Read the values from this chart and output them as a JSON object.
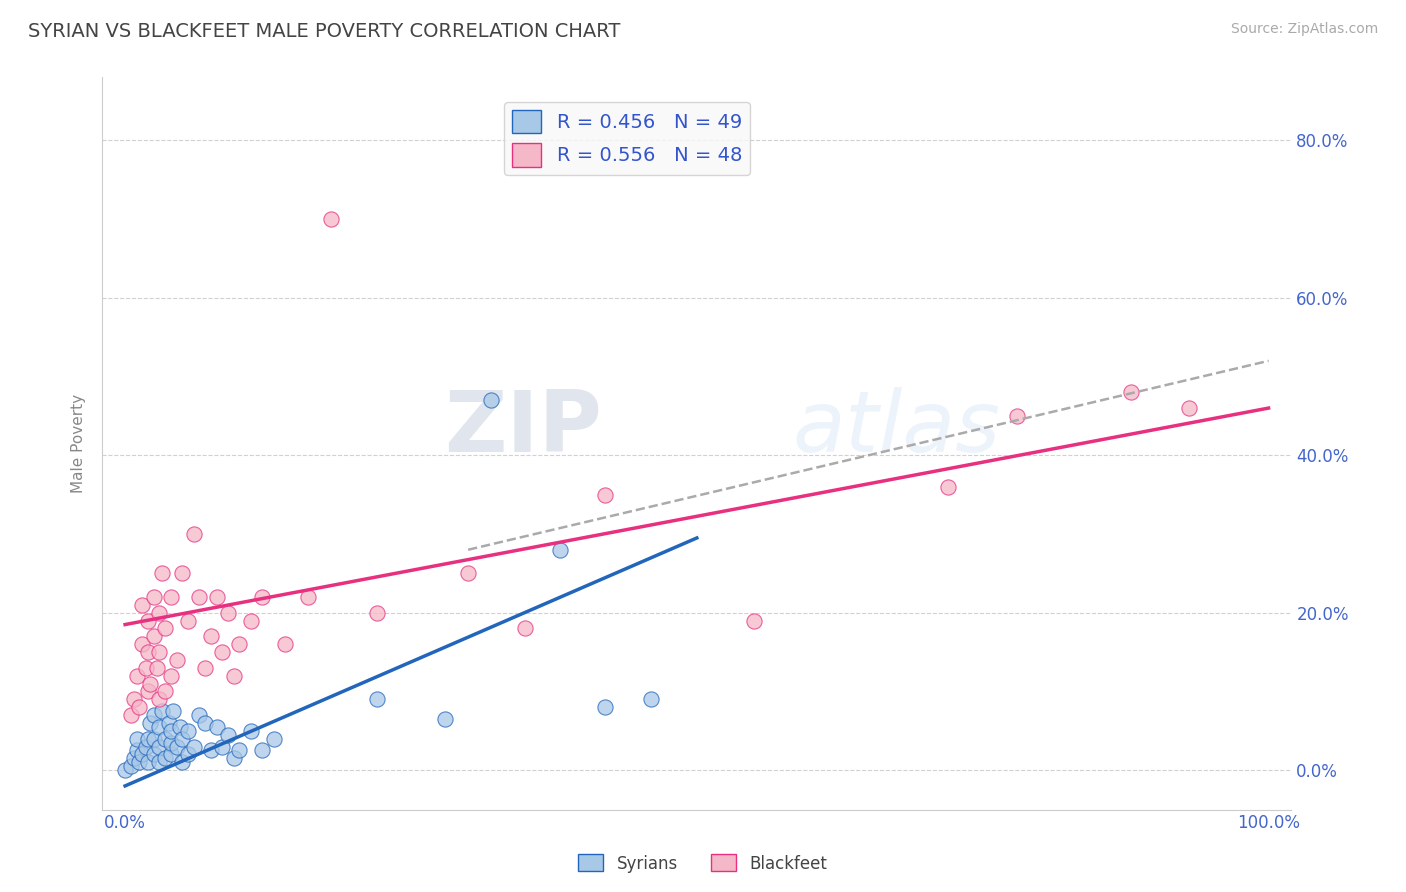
{
  "title": "SYRIAN VS BLACKFEET MALE POVERTY CORRELATION CHART",
  "source": "Source: ZipAtlas.com",
  "ylabel": "Male Poverty",
  "xlim": [
    -0.02,
    1.02
  ],
  "ylim": [
    -0.05,
    0.88
  ],
  "ytick_labels": [
    "0.0%",
    "20.0%",
    "40.0%",
    "60.0%",
    "80.0%"
  ],
  "ytick_values": [
    0.0,
    0.2,
    0.4,
    0.6,
    0.8
  ],
  "legend_syrians": "R = 0.456   N = 49",
  "legend_blackfeet": "R = 0.556   N = 48",
  "watermark_zip": "ZIP",
  "watermark_atlas": "atlas",
  "scatter_syrians": [
    [
      0.0,
      0.0
    ],
    [
      0.005,
      0.005
    ],
    [
      0.008,
      0.015
    ],
    [
      0.01,
      0.025
    ],
    [
      0.01,
      0.04
    ],
    [
      0.012,
      0.01
    ],
    [
      0.015,
      0.02
    ],
    [
      0.018,
      0.03
    ],
    [
      0.02,
      0.01
    ],
    [
      0.02,
      0.04
    ],
    [
      0.022,
      0.06
    ],
    [
      0.025,
      0.02
    ],
    [
      0.025,
      0.04
    ],
    [
      0.025,
      0.07
    ],
    [
      0.03,
      0.01
    ],
    [
      0.03,
      0.03
    ],
    [
      0.03,
      0.055
    ],
    [
      0.032,
      0.075
    ],
    [
      0.035,
      0.015
    ],
    [
      0.035,
      0.04
    ],
    [
      0.038,
      0.06
    ],
    [
      0.04,
      0.02
    ],
    [
      0.04,
      0.035
    ],
    [
      0.04,
      0.05
    ],
    [
      0.042,
      0.075
    ],
    [
      0.045,
      0.03
    ],
    [
      0.048,
      0.055
    ],
    [
      0.05,
      0.01
    ],
    [
      0.05,
      0.04
    ],
    [
      0.055,
      0.02
    ],
    [
      0.055,
      0.05
    ],
    [
      0.06,
      0.03
    ],
    [
      0.065,
      0.07
    ],
    [
      0.07,
      0.06
    ],
    [
      0.075,
      0.025
    ],
    [
      0.08,
      0.055
    ],
    [
      0.085,
      0.03
    ],
    [
      0.09,
      0.045
    ],
    [
      0.095,
      0.015
    ],
    [
      0.1,
      0.025
    ],
    [
      0.11,
      0.05
    ],
    [
      0.12,
      0.025
    ],
    [
      0.13,
      0.04
    ],
    [
      0.22,
      0.09
    ],
    [
      0.28,
      0.065
    ],
    [
      0.32,
      0.47
    ],
    [
      0.38,
      0.28
    ],
    [
      0.42,
      0.08
    ],
    [
      0.46,
      0.09
    ]
  ],
  "scatter_blackfeet": [
    [
      0.005,
      0.07
    ],
    [
      0.008,
      0.09
    ],
    [
      0.01,
      0.12
    ],
    [
      0.012,
      0.08
    ],
    [
      0.015,
      0.16
    ],
    [
      0.015,
      0.21
    ],
    [
      0.018,
      0.13
    ],
    [
      0.02,
      0.1
    ],
    [
      0.02,
      0.15
    ],
    [
      0.02,
      0.19
    ],
    [
      0.022,
      0.11
    ],
    [
      0.025,
      0.17
    ],
    [
      0.025,
      0.22
    ],
    [
      0.028,
      0.13
    ],
    [
      0.03,
      0.09
    ],
    [
      0.03,
      0.15
    ],
    [
      0.03,
      0.2
    ],
    [
      0.032,
      0.25
    ],
    [
      0.035,
      0.1
    ],
    [
      0.035,
      0.18
    ],
    [
      0.04,
      0.12
    ],
    [
      0.04,
      0.22
    ],
    [
      0.045,
      0.14
    ],
    [
      0.05,
      0.25
    ],
    [
      0.055,
      0.19
    ],
    [
      0.06,
      0.3
    ],
    [
      0.065,
      0.22
    ],
    [
      0.07,
      0.13
    ],
    [
      0.075,
      0.17
    ],
    [
      0.08,
      0.22
    ],
    [
      0.085,
      0.15
    ],
    [
      0.09,
      0.2
    ],
    [
      0.095,
      0.12
    ],
    [
      0.1,
      0.16
    ],
    [
      0.11,
      0.19
    ],
    [
      0.12,
      0.22
    ],
    [
      0.14,
      0.16
    ],
    [
      0.16,
      0.22
    ],
    [
      0.18,
      0.7
    ],
    [
      0.22,
      0.2
    ],
    [
      0.3,
      0.25
    ],
    [
      0.35,
      0.18
    ],
    [
      0.42,
      0.35
    ],
    [
      0.55,
      0.19
    ],
    [
      0.72,
      0.36
    ],
    [
      0.78,
      0.45
    ],
    [
      0.88,
      0.48
    ],
    [
      0.93,
      0.46
    ]
  ],
  "trendline_syrians": {
    "x_start": 0.0,
    "y_start": -0.02,
    "x_end": 0.5,
    "y_end": 0.295
  },
  "trendline_blackfeet": {
    "x_start": 0.0,
    "y_start": 0.185,
    "x_end": 1.0,
    "y_end": 0.46
  },
  "dashed_line": {
    "x_start": 0.3,
    "y_start": 0.28,
    "x_end": 1.0,
    "y_end": 0.52
  },
  "color_syrians": "#a8c8e8",
  "color_blackfeet": "#f4b8c8",
  "color_trendline_syrians": "#2266bb",
  "color_trendline_blackfeet": "#e83080",
  "color_trendline_dashed": "#aaaaaa",
  "background_color": "#ffffff",
  "grid_color": "#cccccc",
  "title_color": "#444444",
  "axis_label_color": "#4466cc",
  "legend_text_color": "#3355cc",
  "legend_box_color": "#f8f8f8"
}
